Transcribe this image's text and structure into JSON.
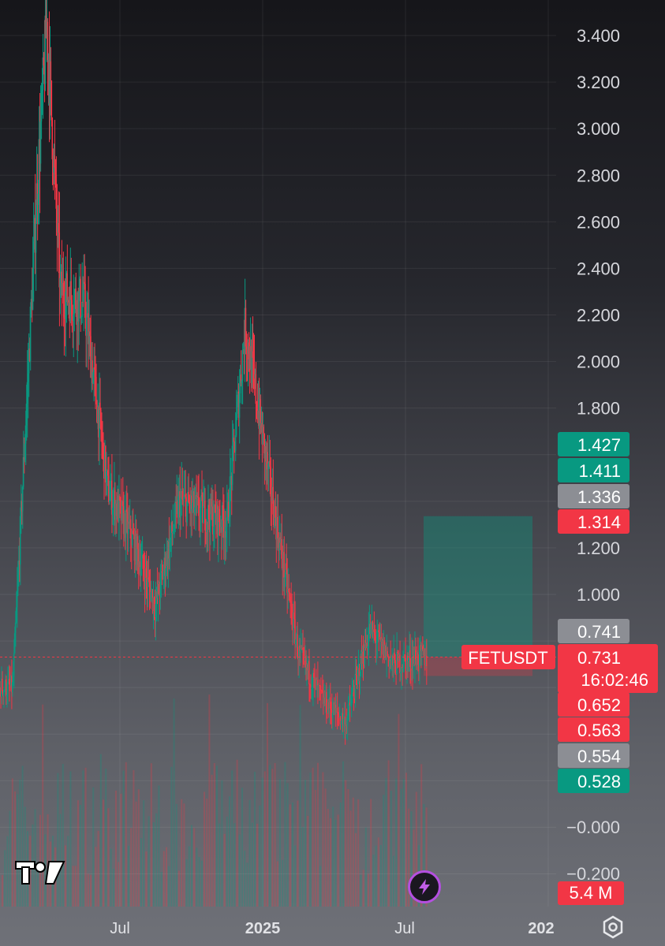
{
  "chart_data": {
    "type": "candlestick",
    "symbol": "FETUSDT",
    "price_axis": {
      "ticks": [
        "3.400",
        "3.200",
        "3.000",
        "2.800",
        "2.600",
        "2.400",
        "2.200",
        "2.000",
        "1.800",
        "1.200",
        "1.000",
        "−0.000",
        "−0.200"
      ],
      "values": [
        3.4,
        3.2,
        3.0,
        2.8,
        2.6,
        2.4,
        2.2,
        2.0,
        1.8,
        1.2,
        1.0,
        0.0,
        -0.2
      ]
    },
    "time_axis": {
      "ticks": [
        "Jul",
        "2025",
        "Jul",
        "202"
      ],
      "bold": [
        false,
        true,
        false,
        true
      ]
    },
    "price_badges": [
      {
        "label": "1.427",
        "value": 1.427,
        "color": "#089981"
      },
      {
        "label": "1.411",
        "value": 1.411,
        "color": "#089981"
      },
      {
        "label": "1.336",
        "value": 1.336,
        "color": "#8c8e94"
      },
      {
        "label": "1.314",
        "value": 1.314,
        "color": "#f23645"
      },
      {
        "label": "0.741",
        "value": 0.741,
        "color": "#8c8e94"
      },
      {
        "label": "0.652",
        "value": 0.652,
        "color": "#f23645"
      },
      {
        "label": "0.563",
        "value": 0.563,
        "color": "#f23645"
      },
      {
        "label": "0.554",
        "value": 0.554,
        "color": "#8c8e94"
      },
      {
        "label": "0.528",
        "value": 0.528,
        "color": "#089981"
      }
    ],
    "last_price": {
      "label": "0.731",
      "value": 0.731,
      "countdown": "16:02:46",
      "color": "#f23645"
    },
    "position_tool": {
      "entry": 0.731,
      "target": 1.336,
      "stop": 0.704
    },
    "series": [
      {
        "date": "2024-02",
        "close": 0.6
      },
      {
        "date": "2024-03",
        "close": 2.7
      },
      {
        "date": "2024-03-28",
        "close": 3.45
      },
      {
        "date": "2024-04",
        "close": 2.3
      },
      {
        "date": "2024-05",
        "close": 2.25
      },
      {
        "date": "2024-06",
        "close": 1.45
      },
      {
        "date": "2024-07",
        "close": 1.25
      },
      {
        "date": "2024-08",
        "close": 0.95
      },
      {
        "date": "2024-09",
        "close": 1.4
      },
      {
        "date": "2024-10",
        "close": 1.35
      },
      {
        "date": "2024-11",
        "close": 1.3
      },
      {
        "date": "2024-12-08",
        "close": 2.15
      },
      {
        "date": "2025-01",
        "close": 1.35
      },
      {
        "date": "2025-02",
        "close": 0.75
      },
      {
        "date": "2025-03",
        "close": 0.55
      },
      {
        "date": "2025-04",
        "close": 0.45
      },
      {
        "date": "2025-05",
        "close": 0.85
      },
      {
        "date": "2025-06",
        "close": 0.7
      },
      {
        "date": "2025-07",
        "close": 0.73
      }
    ]
  },
  "volume_badge": {
    "label": "5.4 M",
    "color": "#f23645"
  },
  "icons": {
    "logo": "tradingview-logo",
    "bolt": "lightning-bolt-icon",
    "settings": "settings-hexagon-icon"
  }
}
